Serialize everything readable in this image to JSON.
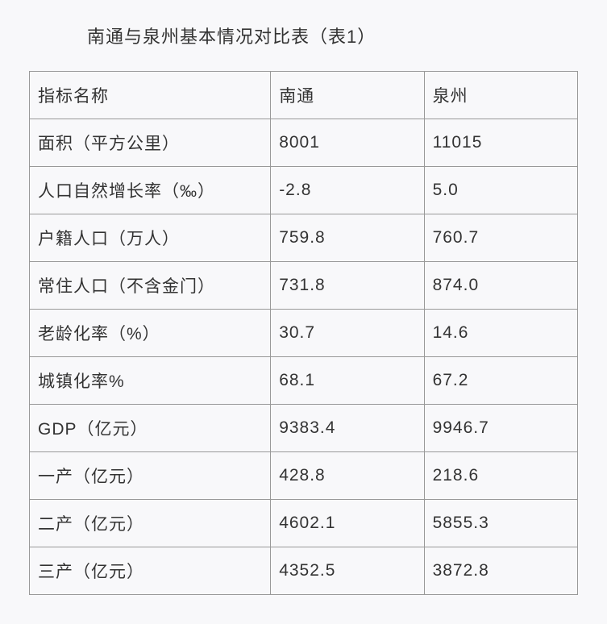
{
  "title": "南通与泉州基本情况对比表（表1）",
  "table": {
    "type": "table",
    "border_color": "#999999",
    "background_color": "#f8f8fa",
    "text_color": "#333333",
    "font_size_pt": 16,
    "columns": [
      {
        "key": "indicator",
        "label": "指标名称",
        "width_pct": 44,
        "align": "left"
      },
      {
        "key": "nantong",
        "label": "南通",
        "width_pct": 28,
        "align": "left"
      },
      {
        "key": "quanzhou",
        "label": "泉州",
        "width_pct": 28,
        "align": "left"
      }
    ],
    "rows": [
      [
        "面积（平方公里）",
        "8001",
        "11015"
      ],
      [
        "人口自然增长率（‰）",
        "-2.8",
        "5.0"
      ],
      [
        "户籍人口（万人）",
        "759.8",
        "760.7"
      ],
      [
        "常住人口（不含金门）",
        "731.8",
        "874.0"
      ],
      [
        "老龄化率（%）",
        "30.7",
        "14.6"
      ],
      [
        "城镇化率%",
        "68.1",
        "67.2"
      ],
      [
        "GDP（亿元）",
        "9383.4",
        "9946.7"
      ],
      [
        "一产（亿元）",
        "428.8",
        "218.6"
      ],
      [
        "二产（亿元）",
        "4602.1",
        "5855.3"
      ],
      [
        "三产（亿元）",
        "4352.5",
        "3872.8"
      ]
    ]
  }
}
